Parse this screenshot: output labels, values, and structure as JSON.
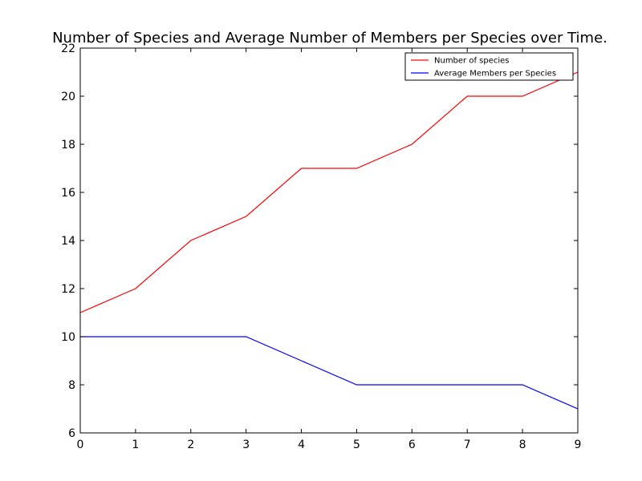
{
  "chart_data": {
    "type": "line",
    "title": "Number of Species and Average Number of Members per Species over Time.",
    "xlabel": "",
    "ylabel": "",
    "x": [
      0,
      1,
      2,
      3,
      4,
      5,
      6,
      7,
      8,
      9
    ],
    "xlim": [
      0,
      9
    ],
    "ylim": [
      6,
      22
    ],
    "xticks": [
      0,
      1,
      2,
      3,
      4,
      5,
      6,
      7,
      8,
      9
    ],
    "yticks": [
      6,
      8,
      10,
      12,
      14,
      16,
      18,
      20,
      22
    ],
    "grid": false,
    "legend_position": "top-right",
    "series": [
      {
        "name": "Number of species",
        "color": "#ff0000",
        "values": [
          11,
          12,
          14,
          15,
          17,
          17,
          18,
          20,
          20,
          21
        ]
      },
      {
        "name": "Average Members per Species",
        "color": "#0000ff",
        "values": [
          10,
          10,
          10,
          10,
          9,
          8,
          8,
          8,
          8,
          7
        ]
      }
    ]
  }
}
